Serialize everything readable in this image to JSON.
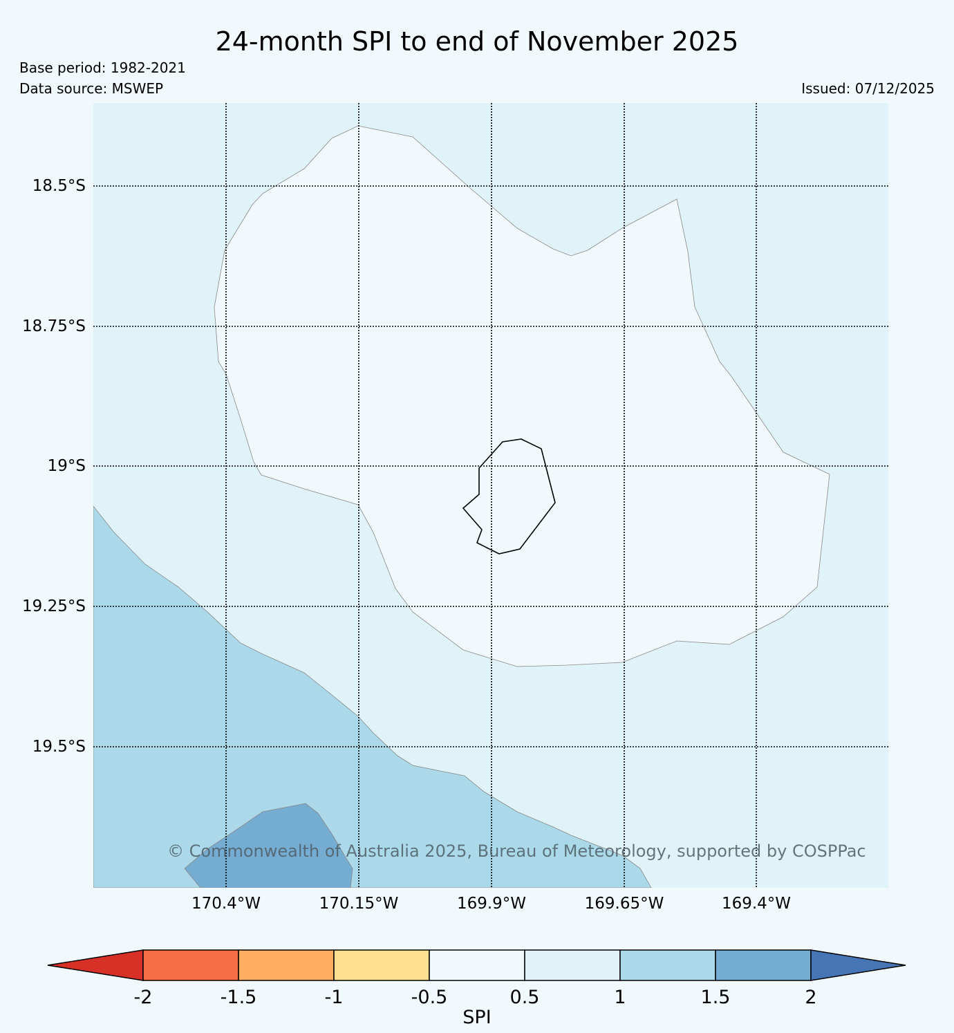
{
  "title": "24-month SPI to end of November 2025",
  "base_period": "Base period: 1982-2021",
  "data_source": "Data source: MSWEP",
  "issued": "Issued: 07/12/2025",
  "copyright": "© Commonwealth of Australia 2025, Bureau of Meteorology, supported by COSPPac",
  "lat_labels": [
    "18.5°S",
    "18.75°S",
    "19°S",
    "19.25°S",
    "19.5°S"
  ],
  "lon_labels": [
    "170.4°W",
    "170.15°W",
    "169.9°W",
    "169.65°W",
    "169.4°W"
  ],
  "colorbar": {
    "label": "SPI",
    "ticks": [
      "-2",
      "-1.5",
      "-1",
      "-0.5",
      "0.5",
      "1",
      "1.5",
      "2"
    ],
    "colors": [
      "#d73027",
      "#f46d43",
      "#fdae61",
      "#fee090",
      "#f2f9fc",
      "#e0f3f8",
      "#abd9e9",
      "#74add1",
      "#4575b4"
    ]
  },
  "map": {
    "colors": {
      "band_0_5_to_1": "#e0f3f8",
      "band_neutral": "#f2f9fc",
      "band_1_to_1_5": "#abd9e9",
      "band_1_5_to_2": "#74add1",
      "island_outline": "#000000"
    }
  }
}
